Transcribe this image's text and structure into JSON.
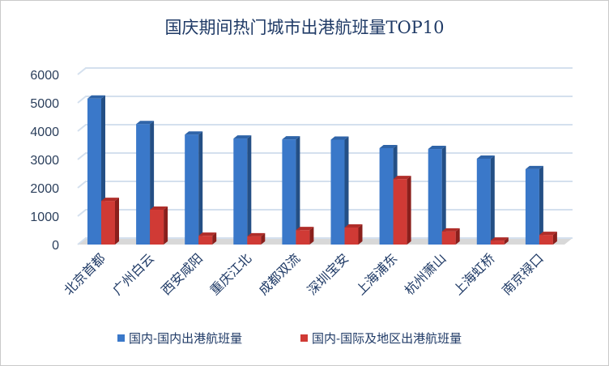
{
  "chart_data": {
    "type": "bar",
    "title": "国庆期间热门城市出港航班量TOP10",
    "categories": [
      "北京首都",
      "广州白云",
      "西安咸阳",
      "重庆江北",
      "成都双流",
      "深圳宝安",
      "上海浦东",
      "杭州萧山",
      "上海虹桥",
      "南京禄口"
    ],
    "series": [
      {
        "name": "国内-国内出港航班量",
        "color": "#3a78c9",
        "side": "#244f85",
        "top": "#2f64a8",
        "values": [
          5150,
          4250,
          3880,
          3740,
          3710,
          3700,
          3400,
          3370,
          3030,
          2660
        ]
      },
      {
        "name": "国内-国际及地区出港航班量",
        "color": "#d03a35",
        "side": "#8a1f1c",
        "top": "#b02d29",
        "values": [
          1540,
          1230,
          310,
          290,
          510,
          600,
          2310,
          460,
          140,
          340
        ]
      }
    ],
    "ylim": [
      0,
      6000
    ],
    "yticks": [
      0,
      1000,
      2000,
      3000,
      4000,
      5000,
      6000
    ],
    "xlabel": "",
    "ylabel": "",
    "grid": true,
    "legend": "bottom"
  }
}
